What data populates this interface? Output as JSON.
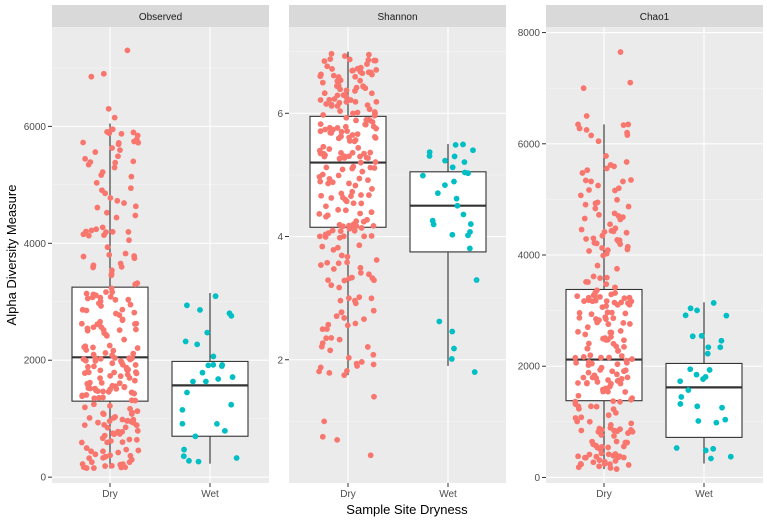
{
  "chart_data": {
    "type": "boxplot",
    "xlabel": "Sample Site Dryness",
    "ylabel": "Alpha Diversity Measure",
    "categories": [
      "Dry",
      "Wet"
    ],
    "colors": {
      "Dry": "#f8766d",
      "Wet": "#00bfc4"
    },
    "panels": [
      {
        "title": "Observed",
        "ylim": [
          -100,
          7700
        ],
        "yticks": [
          0,
          2000,
          4000,
          6000
        ],
        "groups": [
          {
            "name": "Dry",
            "n": 240,
            "min": 150,
            "q1": 1300,
            "median": 2050,
            "q3": 3250,
            "max": 6050,
            "outliers": [
              6150,
              6300,
              6850,
              6900,
              7300
            ]
          },
          {
            "name": "Wet",
            "n": 30,
            "min": 230,
            "q1": 700,
            "median": 1570,
            "q3": 1980,
            "max": 3150,
            "outliers": []
          }
        ]
      },
      {
        "title": "Shannon",
        "ylim": [
          0,
          7.4
        ],
        "yticks": [
          2,
          4,
          6
        ],
        "groups": [
          {
            "name": "Dry",
            "n": 240,
            "min": 1.75,
            "q1": 4.15,
            "median": 5.2,
            "q3": 5.95,
            "max": 7.0,
            "outliers": [
              0.45,
              0.7,
              0.75,
              1.0,
              1.4,
              1.75
            ]
          },
          {
            "name": "Wet",
            "n": 30,
            "min": 1.9,
            "q1": 3.75,
            "median": 4.5,
            "q3": 5.05,
            "max": 5.5,
            "outliers": [
              1.8
            ]
          }
        ]
      },
      {
        "title": "Chao1",
        "ylim": [
          -100,
          8100
        ],
        "yticks": [
          0,
          2000,
          4000,
          6000,
          8000
        ],
        "groups": [
          {
            "name": "Dry",
            "n": 240,
            "min": 150,
            "q1": 1380,
            "median": 2120,
            "q3": 3380,
            "max": 6350,
            "outliers": [
              6500,
              7000,
              7100,
              7650
            ]
          },
          {
            "name": "Wet",
            "n": 30,
            "min": 250,
            "q1": 720,
            "median": 1620,
            "q3": 2050,
            "max": 3150,
            "outliers": []
          }
        ]
      }
    ]
  }
}
